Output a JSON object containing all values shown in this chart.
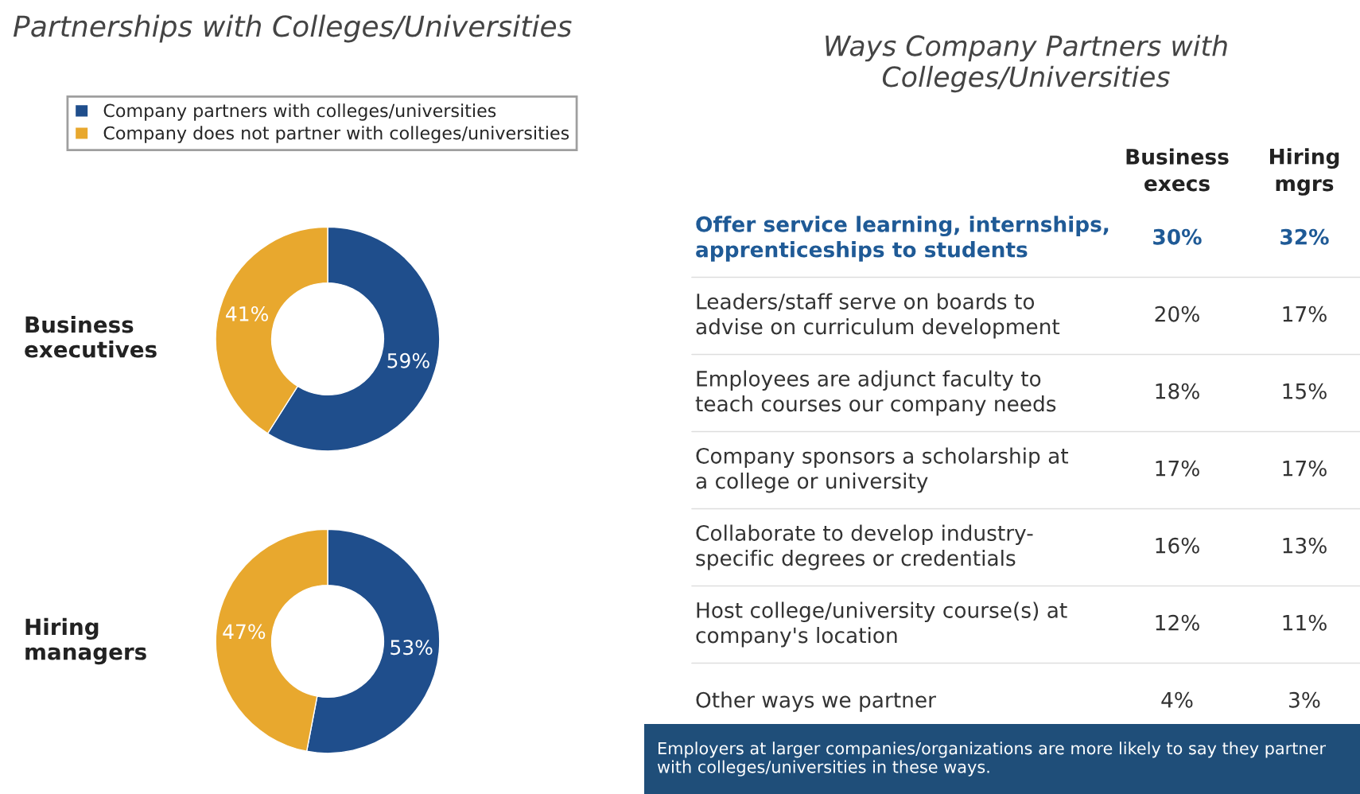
{
  "chart_data": [
    {
      "type": "donut",
      "title": "Partnerships with Colleges/Universities",
      "ylabel": "Business\nexecutives",
      "categories": [
        "Company partners with colleges/universities",
        "Company does not partner with colleges/universities"
      ],
      "values": [
        59,
        41
      ],
      "value_labels": [
        "59%",
        "41%"
      ],
      "colors": [
        "#1f4e8c",
        "#e8a82e"
      ],
      "legend": "top"
    },
    {
      "type": "donut",
      "ylabel": "Hiring\nmanagers",
      "categories": [
        null,
        null
      ],
      "values": [
        53,
        47
      ],
      "value_labels": [
        "53%",
        "47%"
      ],
      "colors": [
        "#1f4e8c",
        "#e8a82e"
      ]
    },
    {
      "type": "other",
      "title": "Ways Company Partners with\nColleges/Universities",
      "categories": [
        "Offer service learning, internships,\napprenticeships to students",
        "Leaders/staff serve on boards to\nadvise on curriculum development",
        "Employees are adjunct faculty to\nteach courses our company needs",
        "Company sponsors a scholarship at\na college or university",
        "Collaborate to develop industry-\nspecific degrees or credentials",
        "Host college/university course(s) at\ncompany's location",
        "Other ways we partner"
      ],
      "series": [
        {
          "name": "Business\nexecs",
          "color": "#333333",
          "values": [
            30,
            20,
            18,
            17,
            16,
            12,
            4
          ],
          "value_labels": [
            "30%",
            "20%",
            "18%",
            "17%",
            "16%",
            "12%",
            "4%"
          ]
        },
        {
          "name": "Hiring\nmgrs",
          "color": "#333333",
          "values": [
            32,
            17,
            15,
            17,
            13,
            11,
            3
          ],
          "value_labels": [
            "32%",
            "17%",
            "15%",
            "17%",
            "13%",
            "11%",
            "3%"
          ]
        }
      ],
      "annotations": [
        "Employers at larger companies/organizations are more likely to say they partner with colleges/universities in these ways."
      ]
    }
  ]
}
